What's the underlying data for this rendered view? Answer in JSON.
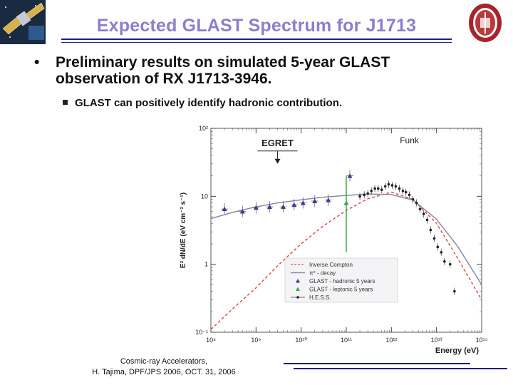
{
  "slide": {
    "title": "Expected GLAST Spectrum for J1713",
    "bullet1": "Preliminary results on simulated 5-year GLAST observation of RX J1713-3946.",
    "bullet1_marker": "•",
    "bullet2": "GLAST can positively identify hadronic contribution.",
    "footer_line1": "Cosmic-ray Accelerators,",
    "footer_line2": "H. Tajima, DPF/JPS 2006, OCT. 31, 2006",
    "colors": {
      "title": "#8a80cc",
      "rule": "#1c1c8a"
    },
    "icons": {
      "top_left": "satellite-icon",
      "top_right": "university-seal-icon"
    }
  },
  "chart_data": {
    "type": "scatter",
    "title": "",
    "xlabel": "Energy (eV)",
    "ylabel": "E² dN/dE (eV cm⁻² s⁻¹)",
    "xscale": "log",
    "yscale": "log",
    "xlim": [
      100000000.0,
      100000000000000.0
    ],
    "ylim": [
      0.1,
      100
    ],
    "x_ticks": [
      "10⁸",
      "10⁹",
      "10¹⁰",
      "10¹¹",
      "10¹²",
      "10¹³",
      "10¹⁴"
    ],
    "y_ticks": [
      "10²",
      "10",
      "1",
      "10⁻¹"
    ],
    "annotations": [
      "EGRET",
      "Funk"
    ],
    "legend": {
      "position": "bottom-right",
      "entries": [
        "Inverse Compton",
        "π⁰ - decay",
        "GLAST - hadronic 5 years",
        "GLAST - leptonic 5 years",
        "H.E.S.S."
      ]
    },
    "series": [
      {
        "name": "Inverse Compton",
        "style": "dashed",
        "color": "#d9534f",
        "x": [
          100000000.0,
          300000000.0,
          1000000000.0,
          3000000000.0,
          10000000000.0,
          30000000000.0,
          100000000000.0,
          300000000000.0,
          1000000000000.0,
          3000000000000.0,
          10000000000000.0,
          30000000000000.0,
          100000000000000.0
        ],
        "y": [
          0.11,
          0.22,
          0.45,
          0.95,
          2.0,
          3.6,
          6.2,
          9.2,
          11.5,
          9.0,
          4.0,
          1.2,
          0.3
        ]
      },
      {
        "name": "π⁰ - decay",
        "style": "solid",
        "color": "#8a8aa8",
        "x": [
          100000000.0,
          300000000.0,
          1000000000.0,
          3000000000.0,
          10000000000.0,
          30000000000.0,
          100000000000.0,
          300000000000.0,
          1000000000000.0,
          3000000000000.0,
          10000000000000.0,
          30000000000000.0,
          100000000000000.0
        ],
        "y": [
          4.7,
          5.8,
          7.0,
          8.0,
          8.9,
          9.7,
          10.3,
          10.8,
          10.6,
          8.8,
          4.6,
          1.8,
          0.5
        ]
      },
      {
        "name": "GLAST - hadronic 5 years",
        "marker": "triangle",
        "color": "#3a3a8c",
        "x": [
          200000000.0,
          500000000.0,
          1000000000.0,
          2000000000.0,
          4000000000.0,
          7000000000.0,
          11000000000.0,
          20000000000.0,
          40000000000.0,
          120000000000.0
        ],
        "y": [
          6.5,
          6.0,
          6.8,
          7.0,
          7.0,
          7.5,
          8.0,
          8.5,
          8.8,
          20.0
        ]
      },
      {
        "name": "GLAST - leptonic 5 years",
        "marker": "triangle",
        "color": "#3aa845",
        "x": [
          100000000000.0
        ],
        "y": [
          8.0
        ]
      },
      {
        "name": "H.E.S.S.",
        "marker": "dot",
        "color": "#222222",
        "x": [
          200000000000.0,
          250000000000.0,
          300000000000.0,
          360000000000.0,
          430000000000.0,
          510000000000.0,
          610000000000.0,
          730000000000.0,
          870000000000.0,
          1040000000000.0,
          1250000000000.0,
          1500000000000.0,
          1800000000000.0,
          2100000000000.0,
          2500000000000.0,
          3000000000000.0,
          3600000000000.0,
          4300000000000.0,
          5200000000000.0,
          6200000000000.0,
          7400000000000.0,
          8900000000000.0,
          10600000000000.0,
          12700000000000.0,
          15000000000000.0,
          20000000000000.0,
          25000000000000.0
        ],
        "y": [
          10.0,
          10.5,
          11.0,
          12.0,
          13.0,
          13.0,
          12.5,
          14.0,
          15.0,
          14.5,
          14.0,
          13.0,
          12.0,
          11.5,
          10.5,
          9.0,
          8.0,
          6.5,
          5.5,
          4.5,
          3.2,
          2.4,
          1.8,
          1.5,
          1.1,
          1.0,
          0.4
        ]
      }
    ]
  }
}
